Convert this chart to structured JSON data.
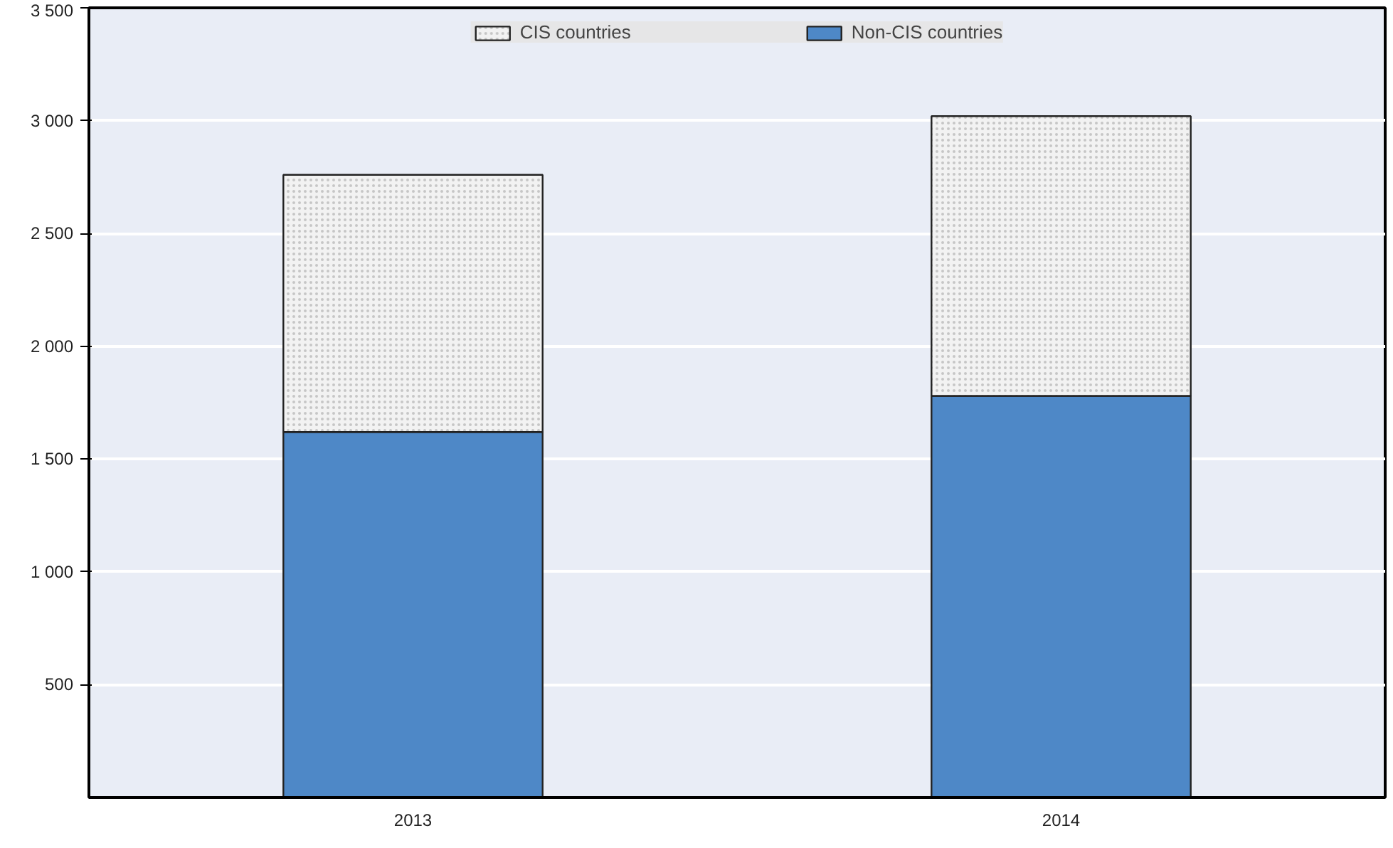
{
  "chart_data": {
    "type": "bar",
    "stacked": true,
    "categories": [
      "2013",
      "2014"
    ],
    "series": [
      {
        "name": "Non-CIS countries",
        "color": "#4e88c7",
        "values": [
          1620,
          1780
        ]
      },
      {
        "name": "CIS countries",
        "color": "#f2f2f2",
        "values": [
          1140,
          1240
        ]
      }
    ],
    "ylim": [
      0,
      3500
    ],
    "yticks": [
      500,
      {
        "value": 1000,
        "label": "1 000"
      },
      {
        "value": 1500,
        "label": "1 500"
      },
      {
        "value": 2000,
        "label": "2 000"
      },
      {
        "value": 2500,
        "label": "2 500"
      },
      {
        "value": 3000,
        "label": "3 000"
      },
      {
        "value": 3500,
        "label": "3 500"
      }
    ],
    "grid": "y",
    "legend": "top"
  }
}
